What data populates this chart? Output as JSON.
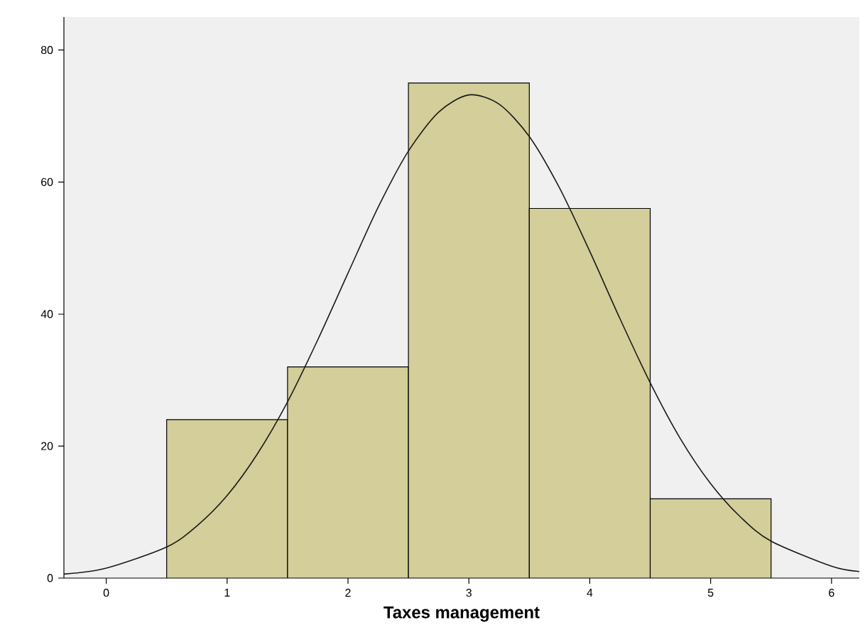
{
  "chart_data": {
    "type": "histogram",
    "xlabel": "Taxes management",
    "bins": [
      0.5,
      1.5,
      2.5,
      3.5,
      4.5,
      5.5
    ],
    "values": [
      24,
      32,
      75,
      56,
      12
    ],
    "color": "#d3ce9a",
    "series": [
      {
        "type": "line",
        "color": "#1a1a1a",
        "x": [
          -0.35,
          0,
          0.5,
          0.75,
          1,
          1.25,
          1.5,
          1.75,
          2,
          2.25,
          2.5,
          2.75,
          3,
          3.25,
          3.5,
          3.75,
          4,
          4.25,
          4.5,
          4.75,
          5,
          5.25,
          5.5,
          6,
          6.23
        ],
        "values": [
          0.6,
          1.5,
          4.7,
          7.9,
          12.5,
          18.8,
          26.7,
          36.1,
          46.2,
          56.2,
          64.7,
          70.6,
          73.2,
          71.8,
          66.9,
          59.1,
          49.5,
          39.3,
          29.6,
          21.1,
          14.3,
          9.2,
          5.6,
          1.8,
          1.0
        ]
      }
    ],
    "xlim": [
      -0.35,
      6.23
    ],
    "ylim": [
      0,
      85
    ],
    "xticks": [
      0,
      1,
      2,
      3,
      4,
      5,
      6
    ],
    "yticks": [
      0,
      20,
      40,
      60,
      80
    ]
  }
}
